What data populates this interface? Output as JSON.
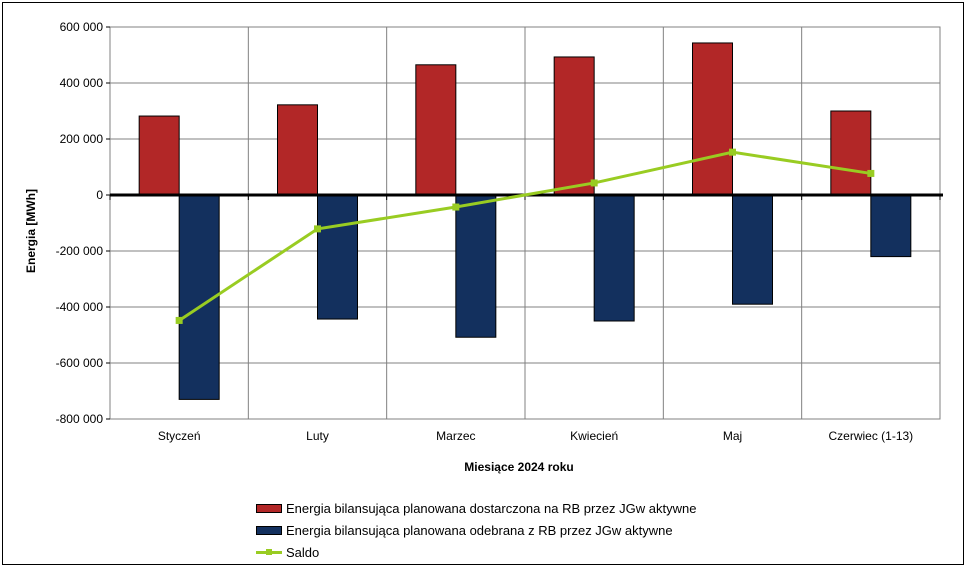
{
  "chart_data": {
    "type": "bar",
    "categories": [
      "Styczeń",
      "Luty",
      "Marzec",
      "Kwiecień",
      "Maj",
      "Czerwiec (1-13)"
    ],
    "series": [
      {
        "name": "Energia bilansująca planowana dostarczona na RB przez JGw aktywne",
        "type": "bar",
        "color": "#b22727",
        "values": [
          282000,
          322000,
          465000,
          493000,
          543000,
          300000
        ]
      },
      {
        "name": "Energia bilansująca planowana odebrana z RB przez JGw aktywne",
        "type": "bar",
        "color": "#13305e",
        "values": [
          -730000,
          -443000,
          -508000,
          -450000,
          -390000,
          -220000
        ]
      },
      {
        "name": "Saldo",
        "type": "line",
        "color": "#99cc22",
        "values": [
          -448000,
          -121000,
          -43000,
          43000,
          153000,
          77000
        ]
      }
    ],
    "xlabel": "Miesiące 2024  roku",
    "ylabel": "Energia [MWh]",
    "ylim": [
      -800000,
      600000
    ],
    "yticks": [
      600000,
      400000,
      200000,
      0,
      -200000,
      -400000,
      -600000,
      -800000
    ],
    "ytick_labels": [
      "600 000",
      "400 000",
      "200 000",
      "0",
      "-200 000",
      "-400 000",
      "-600 000",
      "-800 000"
    ],
    "grid": true,
    "legend_position": "bottom"
  }
}
